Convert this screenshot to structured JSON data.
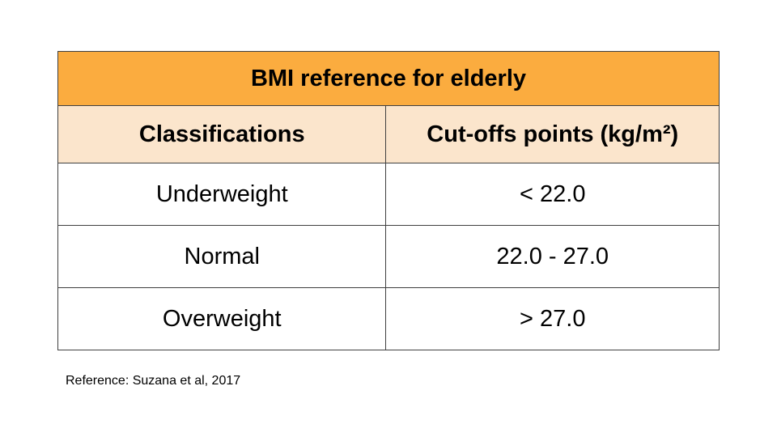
{
  "table": {
    "title": "BMI reference for elderly",
    "headers": [
      "Classifications",
      "Cut-offs points (kg/m²)"
    ],
    "rows": [
      [
        "Underweight",
        "< 22.0"
      ],
      [
        "Normal",
        "22.0 - 27.0"
      ],
      [
        "Overweight",
        "> 27.0"
      ]
    ]
  },
  "reference": "Reference: Suzana et al, 2017",
  "colors": {
    "title_bg": "#fbac3f",
    "header_bg": "#fbe5cc",
    "border": "#404040"
  }
}
